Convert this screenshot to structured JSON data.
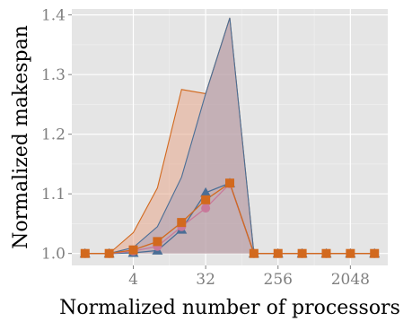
{
  "chart_data": {
    "type": "line",
    "title": "",
    "xlabel": "Normalized number of processors",
    "ylabel": "Normalized makespan",
    "x_scale": "log2",
    "x": [
      1,
      2,
      4,
      8,
      16,
      32,
      64,
      128,
      256,
      512,
      1024,
      2048,
      4096
    ],
    "x_ticks": [
      4,
      32,
      256,
      2048
    ],
    "x_tick_labels": [
      "4",
      "32",
      "256",
      "2048"
    ],
    "ylim": [
      0.98,
      1.41
    ],
    "y_ticks": [
      1.0,
      1.1,
      1.2,
      1.3,
      1.4
    ],
    "y_tick_labels": [
      "1.0",
      "1.1",
      "1.2",
      "1.3",
      "1.4"
    ],
    "grid": true,
    "legend": "none",
    "colors": {
      "panel": "#e5e5e5",
      "grid_major": "#ffffff",
      "grid_minor": "#f2f2f2",
      "band_orange_fill": "#e8a88c",
      "band_orange_line": "#d2691e",
      "band_blue_fill": "#a8a0b8",
      "band_blue_line": "#4a6e96"
    },
    "bands": [
      {
        "fill": "#e8a88c",
        "line": "#d2691e",
        "upper": [
          1.0,
          1.0,
          1.035,
          1.11,
          1.275,
          1.268,
          1.395,
          1.0,
          1.0,
          1.0,
          1.0,
          1.0,
          1.0
        ],
        "lower": [
          1.0,
          1.0,
          1.0,
          1.0,
          1.0,
          1.0,
          1.0,
          1.0,
          1.0,
          1.0,
          1.0,
          1.0,
          1.0
        ]
      },
      {
        "fill": "#a8a0b8",
        "line": "#4a6e96",
        "upper": [
          1.0,
          1.0,
          1.01,
          1.045,
          1.128,
          1.268,
          1.395,
          1.0,
          1.0,
          1.0,
          1.0,
          1.0,
          1.0
        ],
        "lower": [
          1.0,
          1.0,
          1.0,
          1.0,
          1.0,
          1.0,
          1.0,
          1.0,
          1.0,
          1.0,
          1.0,
          1.0,
          1.0
        ]
      }
    ],
    "series": [
      {
        "marker": "triangle",
        "color": "#4a6e96",
        "values": [
          1.0,
          1.0,
          1.001,
          1.005,
          1.04,
          1.102,
          1.118,
          1.0,
          1.0,
          1.0,
          1.0,
          1.0,
          1.0
        ]
      },
      {
        "marker": "circle",
        "color": "#c8799b",
        "values": [
          1.0,
          1.0,
          1.004,
          1.012,
          1.045,
          1.076,
          1.117,
          1.0,
          1.0,
          1.0,
          1.0,
          1.0,
          1.0
        ]
      },
      {
        "marker": "square",
        "color": "#d2691e",
        "values": [
          1.0,
          1.0,
          1.006,
          1.02,
          1.052,
          1.09,
          1.118,
          1.0,
          1.0,
          1.0,
          1.0,
          1.0,
          1.0
        ]
      }
    ]
  }
}
